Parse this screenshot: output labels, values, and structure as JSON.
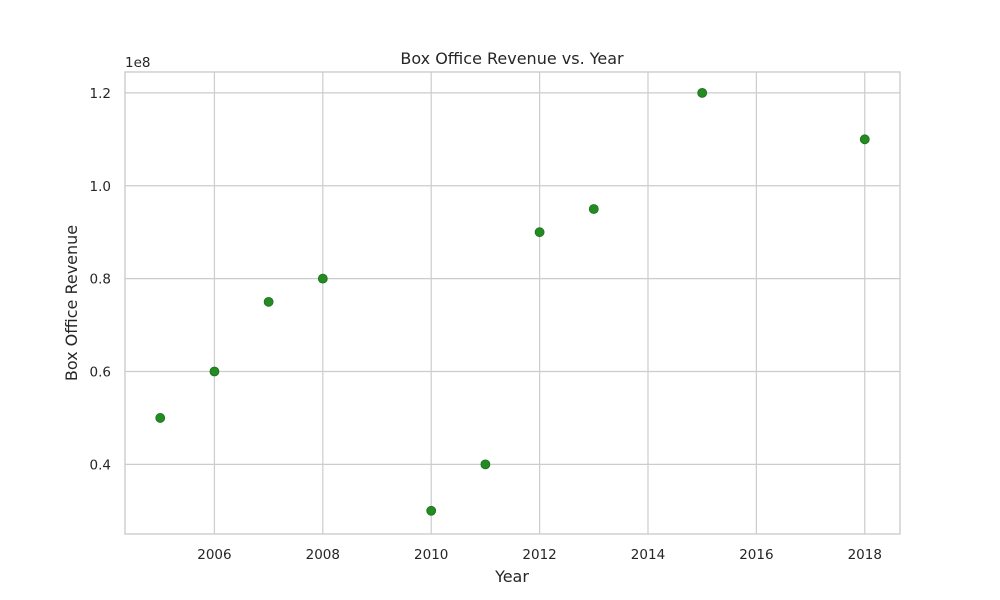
{
  "chart_data": {
    "type": "scatter",
    "title": "Box Office Revenue vs. Year",
    "xlabel": "Year",
    "ylabel": "Box Office Revenue",
    "y_offset_label": "1e8",
    "xlim": [
      2004.35,
      2018.65
    ],
    "ylim": [
      25000000,
      124500000
    ],
    "x_ticks": [
      2006,
      2008,
      2010,
      2012,
      2014,
      2016,
      2018
    ],
    "x_tick_labels": [
      "2006",
      "2008",
      "2010",
      "2012",
      "2014",
      "2016",
      "2018"
    ],
    "y_ticks": [
      40000000,
      60000000,
      80000000,
      100000000,
      120000000
    ],
    "y_tick_labels": [
      "0.4",
      "0.6",
      "0.8",
      "1.0",
      "1.2"
    ],
    "grid": true,
    "marker_color": "#228b22",
    "x": [
      2005,
      2006,
      2007,
      2008,
      2010,
      2011,
      2012,
      2013,
      2015,
      2018
    ],
    "y": [
      50000000,
      60000000,
      75000000,
      80000000,
      30000000,
      40000000,
      90000000,
      95000000,
      120000000,
      110000000
    ]
  }
}
